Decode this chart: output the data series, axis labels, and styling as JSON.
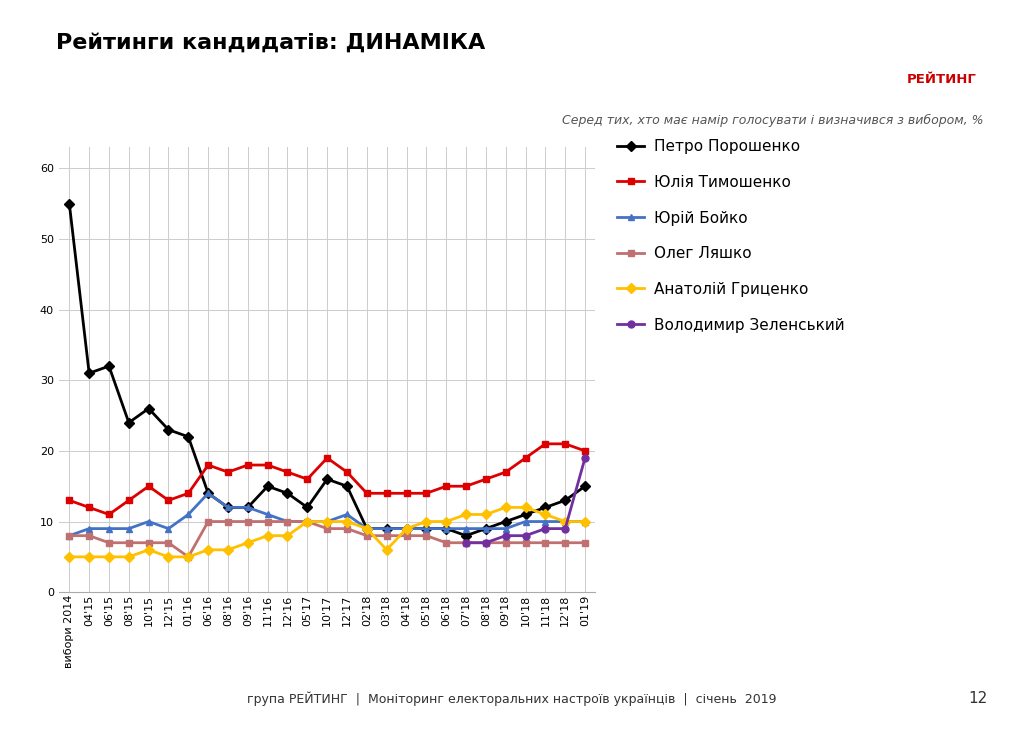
{
  "title": "Рейтинги кандидатів: ДИНАМІКА",
  "subtitle": "Серед тих, хто має намір голосувати і визначився з вибором, %",
  "footer": "група РЕЙТИНГ  |  Моніторинг електоральних настроїв українців  |  січень  2019",
  "page_number": "12",
  "logo_text": "РЕЙТИНГ",
  "x_labels": [
    "вибори 2014",
    "04'15",
    "06'15",
    "08'15",
    "10'15",
    "12'15",
    "01'16",
    "06'16",
    "08'16",
    "09'16",
    "11'16",
    "12'16",
    "05'17",
    "10'17",
    "12'17",
    "02'18",
    "03'18",
    "04'18",
    "05'18",
    "06'18",
    "07'18",
    "08'18",
    "09'18",
    "10'18",
    "11'18",
    "12'18",
    "01'19"
  ],
  "series": [
    {
      "name": "Петро Порошенко",
      "color": "#000000",
      "marker": "D",
      "lw": 2.0,
      "ms": 5,
      "values": [
        55,
        31,
        32,
        24,
        26,
        23,
        22,
        14,
        12,
        12,
        15,
        14,
        12,
        16,
        15,
        9,
        9,
        9,
        9,
        9,
        8,
        9,
        10,
        11,
        12,
        13,
        15
      ]
    },
    {
      "name": "Юлія Тимошенко",
      "color": "#dd0000",
      "marker": "s",
      "lw": 2.0,
      "ms": 5,
      "values": [
        13,
        12,
        11,
        13,
        15,
        13,
        14,
        18,
        17,
        18,
        18,
        17,
        16,
        19,
        17,
        14,
        14,
        14,
        14,
        15,
        15,
        16,
        17,
        19,
        21,
        21,
        20
      ]
    },
    {
      "name": "Юрій Бойко",
      "color": "#4472c4",
      "marker": "^",
      "lw": 2.0,
      "ms": 5,
      "values": [
        8,
        9,
        9,
        9,
        10,
        9,
        11,
        14,
        12,
        12,
        11,
        10,
        10,
        10,
        11,
        9,
        9,
        9,
        9,
        9,
        9,
        9,
        9,
        10,
        10,
        10,
        10
      ]
    },
    {
      "name": "Олег Ляшко",
      "color": "#c07070",
      "marker": "s",
      "lw": 2.0,
      "ms": 5,
      "values": [
        8,
        8,
        7,
        7,
        7,
        7,
        5,
        10,
        10,
        10,
        10,
        10,
        10,
        9,
        9,
        8,
        8,
        8,
        8,
        7,
        7,
        7,
        7,
        7,
        7,
        7,
        7
      ]
    },
    {
      "name": "Анатолій Гриценко",
      "color": "#ffc000",
      "marker": "D",
      "lw": 2.0,
      "ms": 5,
      "values": [
        5,
        5,
        5,
        5,
        6,
        5,
        5,
        6,
        6,
        7,
        8,
        8,
        10,
        10,
        10,
        9,
        6,
        9,
        10,
        10,
        11,
        11,
        12,
        12,
        11,
        10,
        10
      ]
    },
    {
      "name": "Володимир Зеленський",
      "color": "#7030a0",
      "marker": "o",
      "lw": 2.0,
      "ms": 5,
      "values": [
        null,
        null,
        null,
        null,
        null,
        null,
        null,
        null,
        null,
        null,
        null,
        null,
        null,
        null,
        null,
        null,
        null,
        null,
        null,
        null,
        7,
        7,
        8,
        8,
        9,
        9,
        19
      ]
    }
  ],
  "ylim": [
    0,
    63
  ],
  "yticks": [
    0,
    10,
    20,
    30,
    40,
    50,
    60
  ],
  "background_color": "#ffffff",
  "grid_color": "#cccccc",
  "title_fontsize": 16,
  "subtitle_fontsize": 9,
  "tick_fontsize": 8,
  "legend_fontsize": 11,
  "footer_fontsize": 9,
  "logo_bg": "#f2c8c8",
  "logo_fg": "#cc0000"
}
